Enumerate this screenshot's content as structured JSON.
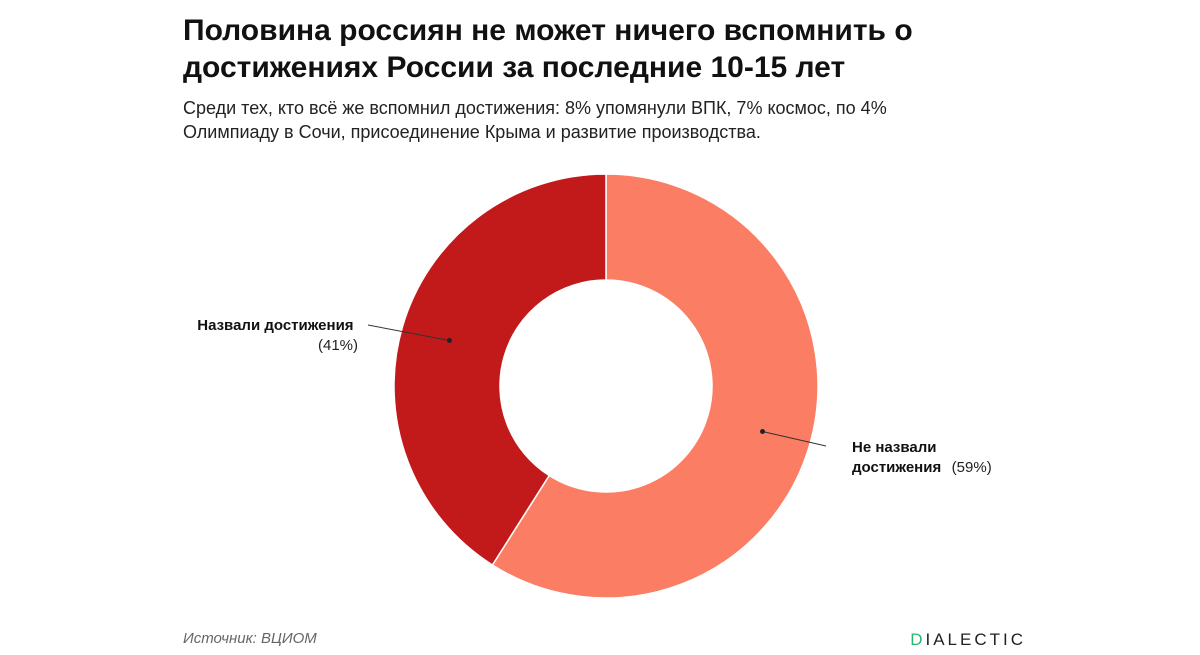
{
  "title": "Половина россиян не может ничего вспомнить о достижениях России за последние 10-15 лет",
  "subtitle": "Среди тех, кто всё же вспомнил достижения: 8% упомянули ВПК, 7% космос, по 4% Олимпиаду в Сочи, присоединение Крыма и развитие производства.",
  "source": "Источник: ВЦИОМ",
  "brand": {
    "first": "D",
    "rest": "IALECTIC",
    "accent_color": "#2bb673"
  },
  "chart_data": {
    "type": "pie",
    "donut": true,
    "slices": [
      {
        "label_line1": "Не назвали",
        "label_line2": "достижения",
        "pct_text": "(59%)",
        "value": 59,
        "color": "#fa7d64"
      },
      {
        "label_line1": "Назвали достижения",
        "label_line2": "",
        "pct_text": "(41%)",
        "value": 41,
        "color": "#c2191b"
      }
    ]
  }
}
